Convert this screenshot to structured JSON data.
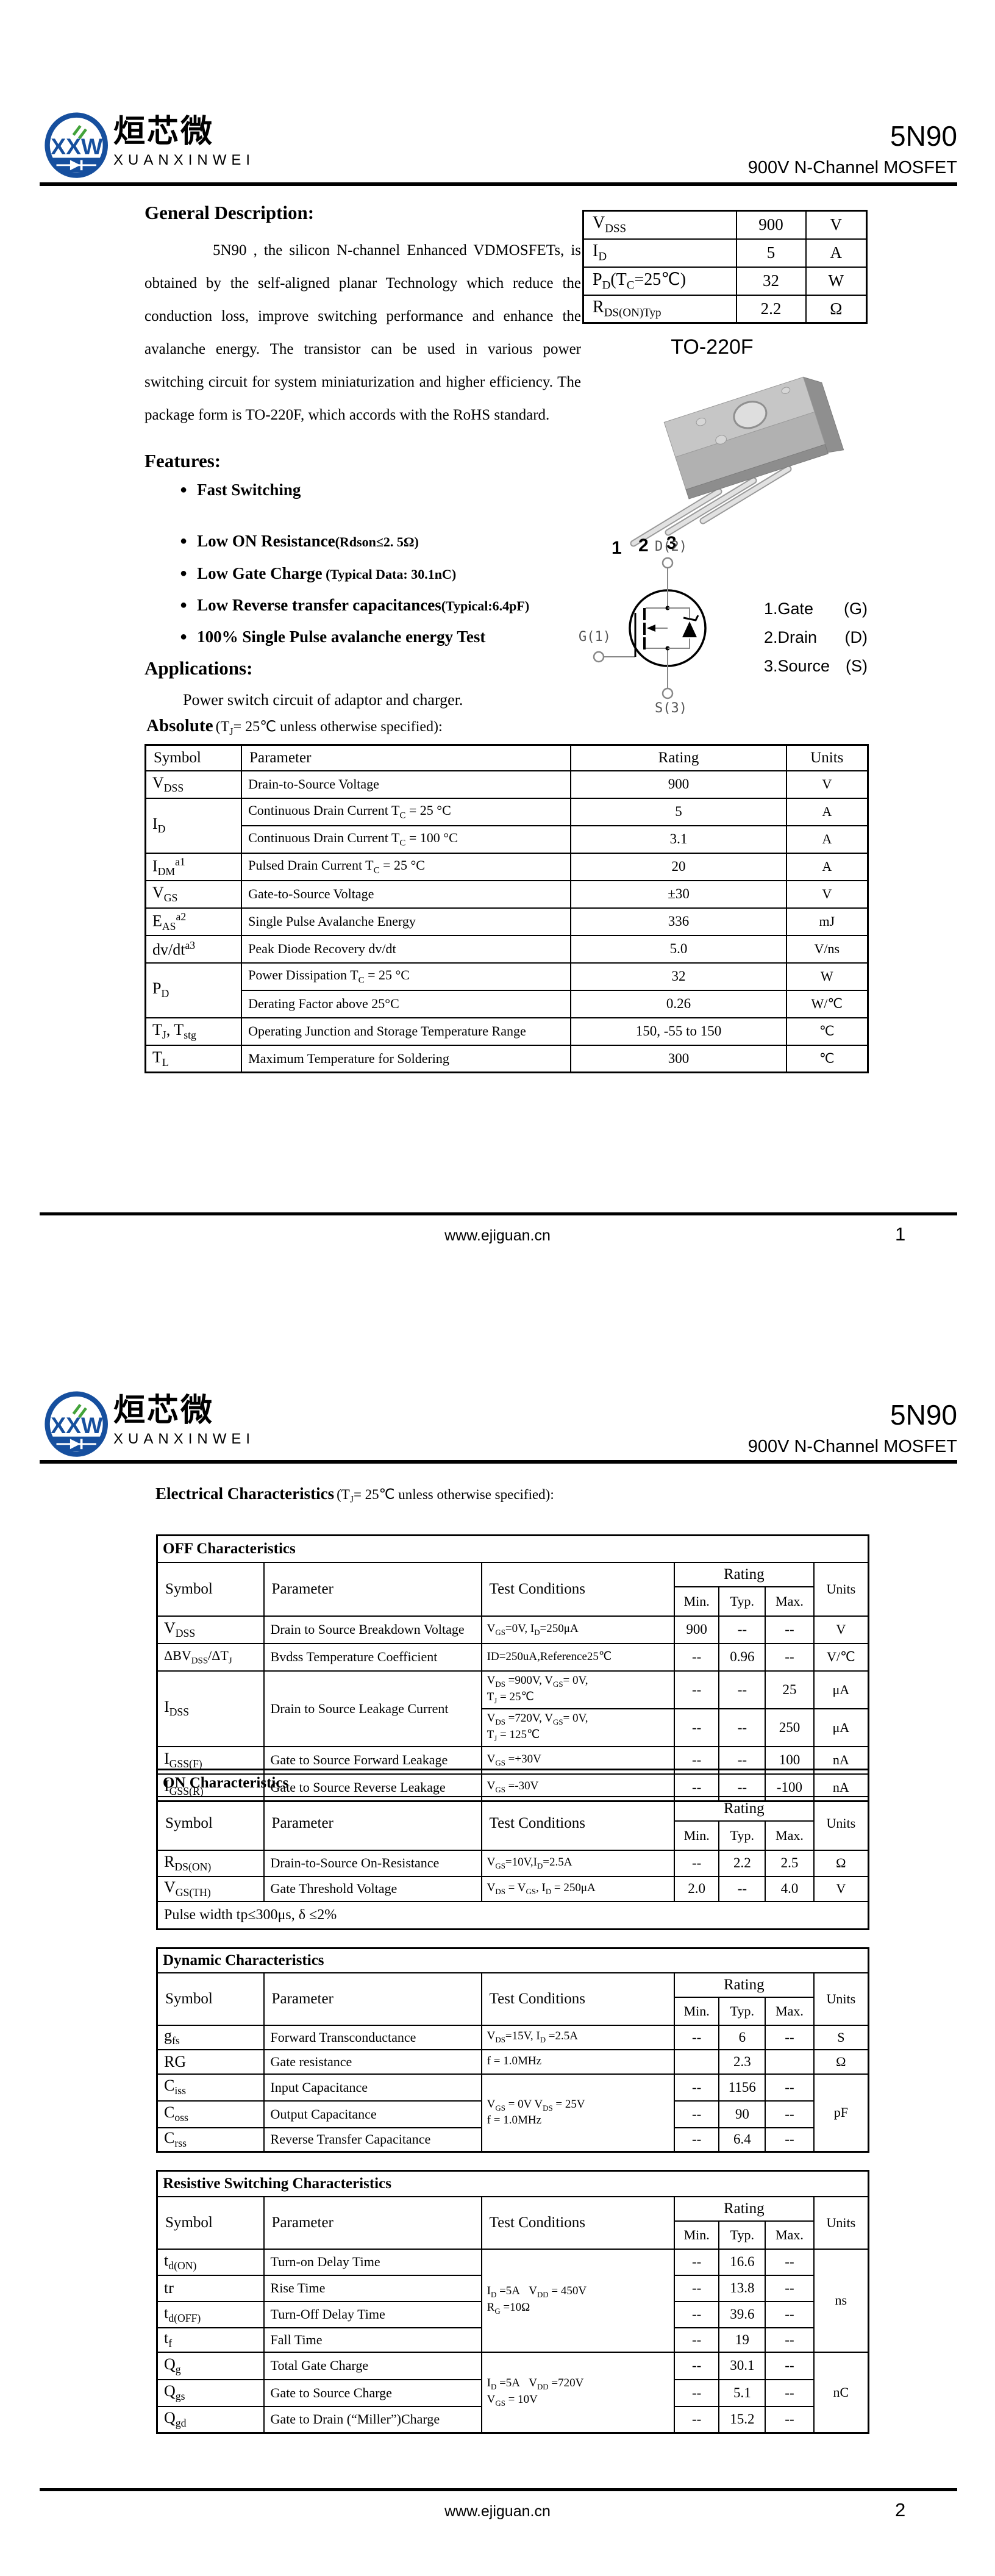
{
  "brand": {
    "cn": "烜芯微",
    "en": "XUANXINWEI",
    "monogram": "XXW"
  },
  "title": {
    "part": "5N90",
    "subtitle": "900V N-Channel MOSFET"
  },
  "footer": {
    "url": "www.ejiguan.cn",
    "page1": "1",
    "page2": "2"
  },
  "cols": {
    "symbol": "Symbol",
    "parameter": "Parameter",
    "test": "Test Conditions",
    "rating": "Rating",
    "min": "Min.",
    "typ": "Typ.",
    "max": "Max.",
    "units": "Units"
  },
  "page1": {
    "general_title": "General Description:",
    "general_body": "5N90 , the silicon N-channel Enhanced VDMOSFETs, is obtained by the self-aligned planar Technology which reduce the conduction loss, improve switching performance and enhance the avalanche energy. The transistor can be used in various power switching circuit for system miniaturization and higher efficiency. The package form is TO-220F, which accords with the RoHS standard.",
    "quick_rows": [
      {
        "sym": "V<sub>DSS</sub>",
        "val": "900",
        "unit": "V"
      },
      {
        "sym": "I<sub>D</sub>",
        "val": "5",
        "unit": "A"
      },
      {
        "sym": "P<sub>D</sub>(T<sub>C</sub>=25℃)",
        "val": "32",
        "unit": "W"
      },
      {
        "sym": "R<sub>DS(ON)Typ</sub>",
        "val": "2.2",
        "unit": "Ω"
      }
    ],
    "package_name": "TO-220F",
    "package_pins": [
      "1",
      "2",
      "3"
    ],
    "symbol_labels": {
      "d": "D(2)",
      "g": "G(1)",
      "s": "S(3)"
    },
    "pin_list": [
      {
        "n": "1.Gate",
        "p": "(G)"
      },
      {
        "n": "2.Drain",
        "p": "(D)"
      },
      {
        "n": "3.Source",
        "p": "(S)"
      }
    ],
    "features_title": "Features:",
    "features": [
      {
        "main": "Fast Switching",
        "note": ""
      },
      {
        "main": "Low ON Resistance",
        "note": "(Rdson≤2. 5Ω)"
      },
      {
        "main": "Low Gate Charge",
        "note": "  (Typical Data: 30.1nC)"
      },
      {
        "main": "Low Reverse transfer capacitances",
        "note": "(Typical:6.4pF)"
      },
      {
        "main": "100% Single Pulse avalanche energy Test",
        "note": ""
      }
    ],
    "applications_title": "Applications:",
    "applications_body": "Power switch circuit of adaptor and charger.",
    "abs_title_b": "Absolute",
    "abs_title_r": "(T<sub>J</sub>= 25℃  unless otherwise specified):",
    "abs_headers": {
      "symbol": "Symbol",
      "parameter": "Parameter",
      "rating": "Rating",
      "units": "Units"
    },
    "abs_rows": [
      {
        "sym": "V<sub>DSS</sub>",
        "par": "Drain-to-Source Voltage",
        "val": "900",
        "unit": "V"
      },
      {
        "sym": "I<sub>D</sub>",
        "par": "Continuous Drain Current T<sub>C</sub> = 25 °C",
        "val": "5",
        "unit": "A"
      },
      {
        "par": "Continuous Drain Current T<sub>C</sub> = 100 °C",
        "val": "3.1",
        "unit": "A"
      },
      {
        "sym": "I<sub>DM</sub><sup>a1</sup>",
        "par": "Pulsed Drain Current T<sub>C</sub> = 25 °C",
        "val": "20",
        "unit": "A"
      },
      {
        "sym": "V<sub>GS</sub>",
        "par": "Gate-to-Source Voltage",
        "val": "±30",
        "unit": "V"
      },
      {
        "sym": "E<sub>AS</sub><sup>a2</sup>",
        "par": "Single Pulse Avalanche Energy",
        "val": "336",
        "unit": "mJ"
      },
      {
        "sym": "dv/dt<sup>a3</sup>",
        "par": "Peak Diode Recovery dv/dt",
        "val": "5.0",
        "unit": "V/ns"
      },
      {
        "sym": "P<sub>D</sub>",
        "par": "Power Dissipation T<sub>C</sub> = 25 °C",
        "val": "32",
        "unit": "W"
      },
      {
        "par": "Derating Factor above 25°C",
        "val": "0.26",
        "unit": "W/℃"
      },
      {
        "sym": "T<sub>J</sub>, T<sub>stg</sub>",
        "par": "Operating Junction and Storage Temperature Range",
        "val": "150, -55 to 150",
        "unit": "℃"
      },
      {
        "sym": "T<sub>L</sub>",
        "par": "Maximum Temperature for Soldering",
        "val": "300",
        "unit": "℃"
      }
    ]
  },
  "page2": {
    "ec_title_b": "Electrical Characteristics",
    "ec_title_r": "(T<sub>J</sub>= 25℃  unless otherwise specified):",
    "off_title": "OFF Characteristics",
    "off_rows": [
      {
        "sym": "V<sub>DSS</sub>",
        "par": "Drain to Source Breakdown Voltage",
        "cond": "V<sub>GS</sub>=0V, I<sub>D</sub>=250μA",
        "min": "900",
        "typ": "--",
        "max": "--",
        "unit": "V"
      },
      {
        "sym": "ΔBV<sub>DSS</sub>/ΔT<sub>J</sub>",
        "par": "Bvdss Temperature Coefficient",
        "cond": "ID=250uA,Reference25℃",
        "min": "--",
        "typ": "0.96",
        "max": "--",
        "unit": "V/℃"
      },
      {
        "sym": "I<sub>DSS</sub>",
        "par": "Drain to Source Leakage Current",
        "cond": "V<sub>DS</sub> =900V, V<sub>GS</sub>= 0V,<br>T<sub>J</sub> = 25℃",
        "min": "--",
        "typ": "--",
        "max": "25",
        "unit": "μA"
      },
      {
        "cond": "V<sub>DS</sub> =720V, V<sub>GS</sub>= 0V,<br>T<sub>J</sub> = 125℃",
        "min": "--",
        "typ": "--",
        "max": "250",
        "unit": "μA"
      },
      {
        "sym": "I<sub>GSS(F)</sub>",
        "par": "Gate to Source Forward Leakage",
        "cond": "V<sub>GS</sub> =+30V",
        "min": "--",
        "typ": "--",
        "max": "100",
        "unit": "nA"
      },
      {
        "sym": "I<sub>GSS(R)</sub>",
        "par": "Gate to Source Reverse Leakage",
        "cond": "V<sub>GS</sub> =-30V",
        "min": "--",
        "typ": "--",
        "max": "-100",
        "unit": "nA"
      }
    ],
    "on_title": "ON Characteristics",
    "on_rows": [
      {
        "sym": "R<sub>DS(ON)</sub>",
        "par": "Drain-to-Source On-Resistance",
        "cond": "V<sub>GS</sub>=10V,I<sub>D</sub>=2.5A",
        "min": "--",
        "typ": "2.2",
        "max": "2.5",
        "unit": "Ω"
      },
      {
        "sym": "V<sub>GS(TH)</sub>",
        "par": "Gate Threshold Voltage",
        "cond": "V<sub>DS</sub> = V<sub>GS</sub>, I<sub>D</sub> = 250μA",
        "min": "2.0",
        "typ": "--",
        "max": "4.0",
        "unit": "V"
      }
    ],
    "on_note": "Pulse width tp≤300μs, δ ≤2%",
    "dyn_title": "Dynamic Characteristics",
    "dyn_rows": [
      {
        "sym": "g<sub>fs</sub>",
        "par": "Forward Transconductance",
        "cond": "V<sub>DS</sub>=15V, I<sub>D</sub> =2.5A",
        "min": "--",
        "typ": "6",
        "max": "--",
        "unit": "S"
      },
      {
        "sym": "RG",
        "par": "Gate resistance",
        "cond": "f = 1.0MHz",
        "min": "",
        "typ": "2.3",
        "max": "",
        "unit": "Ω"
      },
      {
        "sym": "C<sub>iss</sub>",
        "par": "Input Capacitance",
        "cond": "V<sub>GS</sub> = 0V V<sub>DS</sub> = 25V<br>f = 1.0MHz",
        "min": "--",
        "typ": "1156",
        "max": "--",
        "unit": "pF"
      },
      {
        "sym": "C<sub>oss</sub>",
        "par": "Output Capacitance",
        "min": "--",
        "typ": "90",
        "max": "--"
      },
      {
        "sym": "C<sub>rss</sub>",
        "par": "Reverse Transfer Capacitance",
        "min": "--",
        "typ": "6.4",
        "max": "--"
      }
    ],
    "sw_title": "Resistive Switching Characteristics",
    "sw_rows": [
      {
        "sym": "t<sub>d(ON)</sub>",
        "par": "Turn-on Delay Time",
        "cond": "I<sub>D</sub> =5A&nbsp;&nbsp;&nbsp;V<sub>DD</sub> = 450V<br>R<sub>G</sub> =10Ω",
        "min": "--",
        "typ": "16.6",
        "max": "--",
        "unit": "ns"
      },
      {
        "sym": "tr",
        "par": "Rise Time",
        "min": "--",
        "typ": "13.8",
        "max": "--"
      },
      {
        "sym": "t<sub>d(OFF)</sub>",
        "par": "Turn-Off Delay Time",
        "min": "--",
        "typ": "39.6",
        "max": "--"
      },
      {
        "sym": "t<sub>f</sub>",
        "par": "Fall Time",
        "min": "--",
        "typ": "19",
        "max": "--"
      },
      {
        "sym": "Q<sub>g</sub>",
        "par": "Total Gate Charge",
        "cond": "I<sub>D</sub> =5A&nbsp;&nbsp;&nbsp;V<sub>DD</sub> =720V<br>V<sub>GS</sub> = 10V",
        "min": "--",
        "typ": "30.1",
        "max": "--",
        "unit": "nC"
      },
      {
        "sym": "Q<sub>gs</sub>",
        "par": "Gate to Source Charge",
        "min": "--",
        "typ": "5.1",
        "max": "--"
      },
      {
        "sym": "Q<sub>gd</sub>",
        "par": "Gate to Drain (“Miller”)Charge",
        "min": "--",
        "typ": "15.2",
        "max": "--"
      }
    ]
  }
}
